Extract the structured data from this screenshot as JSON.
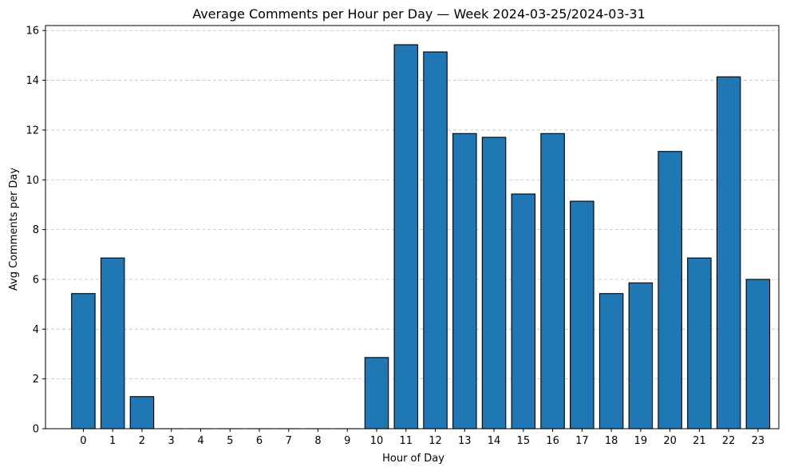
{
  "chart_data": {
    "type": "bar",
    "title": "Average Comments per Hour per Day — Week 2024-03-25/2024-03-31",
    "xlabel": "Hour of Day",
    "ylabel": "Avg Comments per Day",
    "categories": [
      "0",
      "1",
      "2",
      "3",
      "4",
      "5",
      "6",
      "7",
      "8",
      "9",
      "10",
      "11",
      "12",
      "13",
      "14",
      "15",
      "16",
      "17",
      "18",
      "19",
      "20",
      "21",
      "22",
      "23"
    ],
    "values": [
      5.43,
      6.86,
      1.29,
      0,
      0,
      0,
      0,
      0,
      0,
      0,
      2.86,
      15.43,
      15.14,
      11.86,
      11.71,
      9.43,
      11.86,
      9.14,
      5.43,
      5.86,
      11.14,
      6.86,
      14.14,
      6.0
    ],
    "ylim": [
      0,
      16.2
    ],
    "yticks": [
      0,
      2,
      4,
      6,
      8,
      10,
      12,
      14,
      16
    ],
    "grid": "y, dashed",
    "bar_color": "#1f77b4",
    "edge_color": "#000000",
    "grid_color": "#b0b0b0"
  }
}
